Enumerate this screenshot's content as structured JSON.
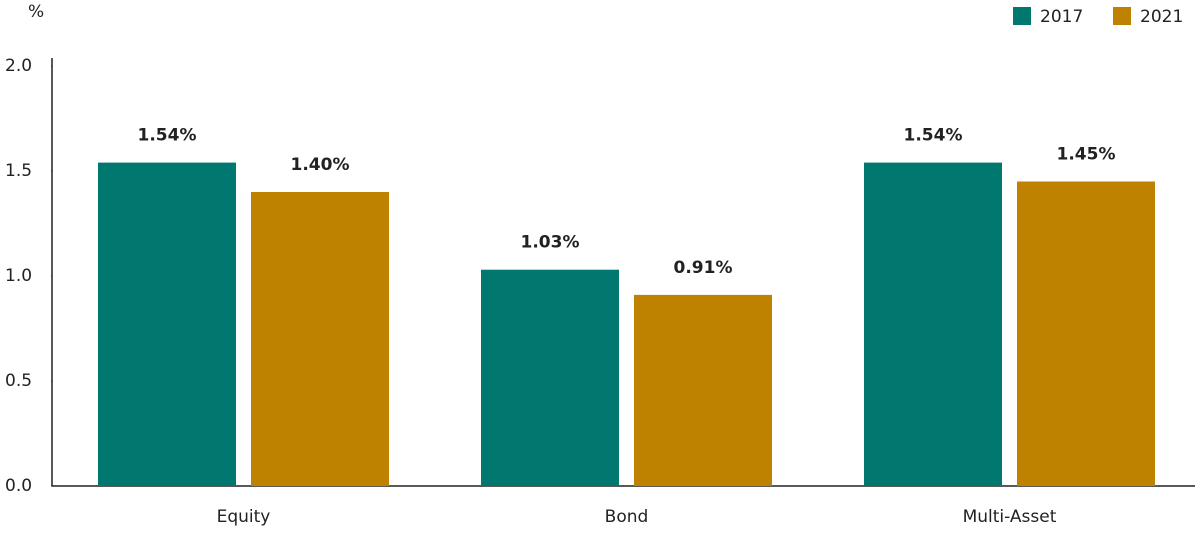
{
  "chart_data": {
    "type": "bar",
    "y_label": "%",
    "categories": [
      "Equity",
      "Bond",
      "Multi-Asset"
    ],
    "series": [
      {
        "name": "2017",
        "color": "#00786f",
        "values": [
          1.54,
          1.03,
          1.54
        ],
        "value_labels": [
          "1.54%",
          "1.03%",
          "1.54%"
        ]
      },
      {
        "name": "2021",
        "color": "#bf8200",
        "values": [
          1.4,
          0.91,
          1.45
        ],
        "value_labels": [
          "1.40%",
          "0.91%",
          "1.45%"
        ]
      }
    ],
    "ylim": [
      0,
      2
    ],
    "yticks": [
      {
        "value": 0,
        "label": "0.0"
      },
      0.5,
      {
        "value": 1,
        "label": "1.0"
      },
      1.5,
      {
        "value": 2,
        "label": "2.0"
      }
    ],
    "grid": false,
    "legend": "top-right"
  }
}
